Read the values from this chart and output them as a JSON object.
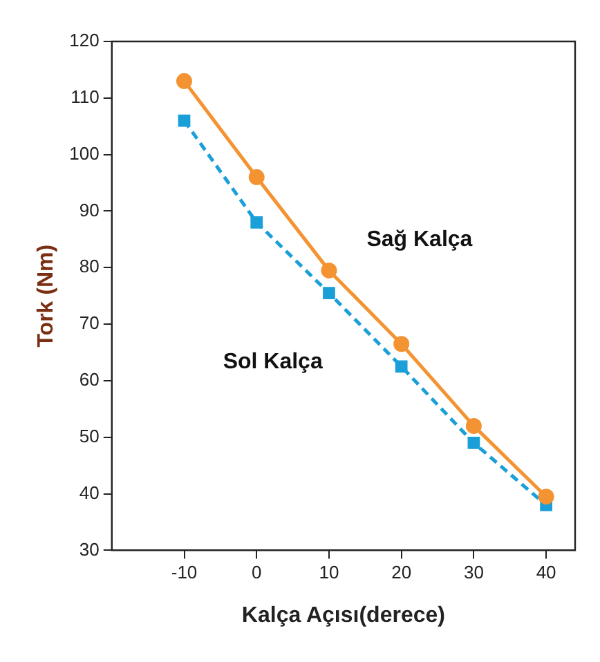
{
  "chart_data": {
    "type": "line",
    "xlabel": "Kalça Açısı(derece)",
    "ylabel": "Tork (Nm)",
    "x": [
      -10,
      0,
      10,
      20,
      30,
      40
    ],
    "series": [
      {
        "name": "Sağ Kalça",
        "color": "#f39332",
        "values": [
          113,
          96,
          79.5,
          66.5,
          52,
          39.5
        ],
        "marker": "circle",
        "line_style": "solid"
      },
      {
        "name": "Sol Kalça",
        "color": "#1a9fd8",
        "values": [
          106,
          88,
          75.5,
          62.5,
          49,
          38
        ],
        "marker": "square",
        "line_style": "dashed"
      }
    ],
    "xlim": [
      -20,
      44
    ],
    "xticks": [
      -10,
      0,
      10,
      20,
      30,
      40
    ],
    "ylim": [
      30,
      120
    ],
    "yticks": [
      30,
      40,
      50,
      60,
      70,
      80,
      90,
      100,
      110,
      120
    ],
    "grid": false,
    "legend": false
  }
}
